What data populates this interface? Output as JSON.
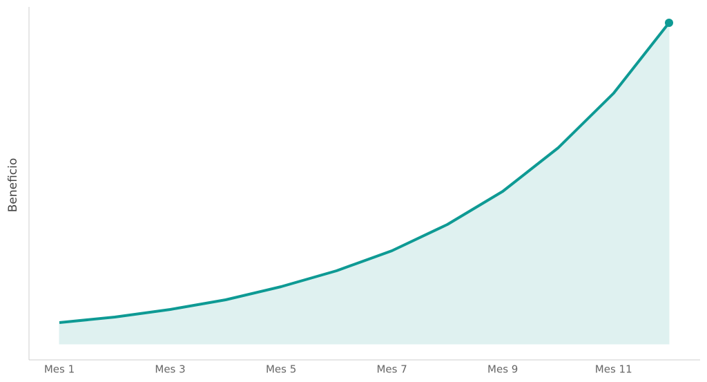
{
  "chart_data": {
    "type": "area",
    "y_label": "Beneficio",
    "categories": [
      "Mes 1",
      null,
      "Mes 3",
      null,
      "Mes 5",
      null,
      "Mes 7",
      null,
      "Mes 9",
      null,
      "Mes 11",
      null
    ],
    "values": [
      31,
      39,
      50,
      64,
      83,
      106,
      135,
      173,
      221,
      284,
      363,
      465
    ],
    "color": "#0e9a94",
    "fill_color": "#dff1f0",
    "ylim": [
      -23,
      488
    ]
  }
}
